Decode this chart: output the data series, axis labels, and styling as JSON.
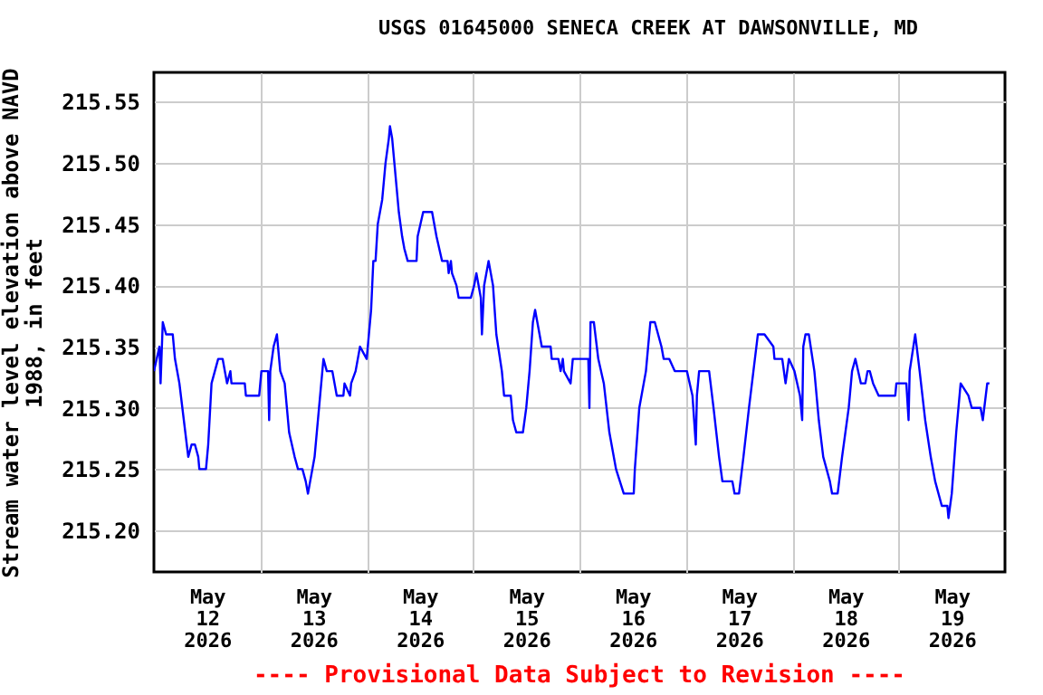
{
  "chart_data": {
    "type": "line",
    "title": "USGS 01645000 SENECA CREEK AT DAWSONVILLE, MD",
    "ylabel": "Stream water level elevation above NAVD 1988, in feet",
    "annotations": [
      "---- Provisional Data Subject to Revision ----"
    ],
    "grid": true,
    "line_style": "solid",
    "xlim": [
      "2026-05-12T00:00",
      "2026-05-20T00:00"
    ],
    "xticks": [
      {
        "value": "2026-05-12T12:00",
        "label": "May\n12\n2026"
      },
      {
        "value": "2026-05-13T00:00",
        "label": null
      },
      {
        "value": "2026-05-13T12:00",
        "label": "May\n13\n2026"
      },
      {
        "value": "2026-05-14T00:00",
        "label": null
      },
      {
        "value": "2026-05-14T12:00",
        "label": "May\n14\n2026"
      },
      {
        "value": "2026-05-15T00:00",
        "label": null
      },
      {
        "value": "2026-05-15T12:00",
        "label": "May\n15\n2026"
      },
      {
        "value": "2026-05-16T00:00",
        "label": null
      },
      {
        "value": "2026-05-16T12:00",
        "label": "May\n16\n2026"
      },
      {
        "value": "2026-05-17T00:00",
        "label": null
      },
      {
        "value": "2026-05-17T12:00",
        "label": "May\n17\n2026"
      },
      {
        "value": "2026-05-18T00:00",
        "label": null
      },
      {
        "value": "2026-05-18T12:00",
        "label": "May\n18\n2026"
      },
      {
        "value": "2026-05-19T00:00",
        "label": null
      },
      {
        "value": "2026-05-19T12:00",
        "label": "May\n19\n2026"
      }
    ],
    "ylim": [
      215.166,
      215.574
    ],
    "yticks": [
      {
        "value": 215.2,
        "label": "215.20"
      },
      {
        "value": 215.25,
        "label": "215.25"
      },
      {
        "value": 215.3,
        "label": "215.30"
      },
      {
        "value": 215.35,
        "label": "215.35"
      },
      {
        "value": 215.4,
        "label": "215.40"
      },
      {
        "value": 215.45,
        "label": "215.45"
      },
      {
        "value": 215.5,
        "label": "215.50"
      },
      {
        "value": 215.55,
        "label": "215.55"
      }
    ],
    "series": [
      {
        "color": "#0000ff",
        "x": [
          "2026-05-12T00:00",
          "2026-05-12T01:15",
          "2026-05-12T01:30",
          "2026-05-12T02:00",
          "2026-05-12T02:45",
          "2026-05-12T04:15",
          "2026-05-12T04:45",
          "2026-05-12T05:45",
          "2026-05-12T06:45",
          "2026-05-12T07:45",
          "2026-05-12T08:30",
          "2026-05-12T09:15",
          "2026-05-12T10:00",
          "2026-05-12T10:15",
          "2026-05-12T11:45",
          "2026-05-12T12:15",
          "2026-05-12T13:00",
          "2026-05-12T14:30",
          "2026-05-12T15:30",
          "2026-05-12T16:30",
          "2026-05-12T17:15",
          "2026-05-12T17:30",
          "2026-05-12T20:30",
          "2026-05-12T20:45",
          "2026-05-12T23:45",
          "2026-05-13T00:15",
          "2026-05-13T01:45",
          "2026-05-13T02:00",
          "2026-05-13T02:15",
          "2026-05-13T03:00",
          "2026-05-13T03:45",
          "2026-05-13T04:30",
          "2026-05-13T05:30",
          "2026-05-13T06:00",
          "2026-05-13T06:30",
          "2026-05-13T07:45",
          "2026-05-13T08:30",
          "2026-05-13T09:30",
          "2026-05-13T10:15",
          "2026-05-13T10:45",
          "2026-05-13T11:15",
          "2026-05-13T12:15",
          "2026-05-13T13:15",
          "2026-05-13T14:00",
          "2026-05-13T14:15",
          "2026-05-13T15:00",
          "2026-05-13T16:15",
          "2026-05-13T17:15",
          "2026-05-13T18:45",
          "2026-05-13T19:00",
          "2026-05-13T20:15",
          "2026-05-13T20:30",
          "2026-05-13T21:30",
          "2026-05-13T22:30",
          "2026-05-14T00:00",
          "2026-05-14T00:15",
          "2026-05-14T01:00",
          "2026-05-14T01:30",
          "2026-05-14T02:00",
          "2026-05-14T02:30",
          "2026-05-14T03:30",
          "2026-05-14T04:15",
          "2026-05-14T05:00",
          "2026-05-14T05:15",
          "2026-05-14T05:45",
          "2026-05-14T06:15",
          "2026-05-14T06:45",
          "2026-05-14T07:15",
          "2026-05-14T08:00",
          "2026-05-14T08:30",
          "2026-05-14T09:15",
          "2026-05-14T11:15",
          "2026-05-14T11:30",
          "2026-05-14T12:45",
          "2026-05-14T14:45",
          "2026-05-14T15:45",
          "2026-05-14T17:00",
          "2026-05-14T18:15",
          "2026-05-14T18:30",
          "2026-05-14T19:00",
          "2026-05-14T19:15",
          "2026-05-14T20:15",
          "2026-05-14T20:45",
          "2026-05-14T23:30",
          "2026-05-15T00:15",
          "2026-05-15T00:45",
          "2026-05-15T01:45",
          "2026-05-15T02:00",
          "2026-05-15T02:30",
          "2026-05-15T03:30",
          "2026-05-15T04:00",
          "2026-05-15T04:30",
          "2026-05-15T05:15",
          "2026-05-15T06:30",
          "2026-05-15T07:00",
          "2026-05-15T08:30",
          "2026-05-15T09:00",
          "2026-05-15T09:45",
          "2026-05-15T11:15",
          "2026-05-15T12:00",
          "2026-05-15T12:45",
          "2026-05-15T13:30",
          "2026-05-15T14:00",
          "2026-05-15T14:30",
          "2026-05-15T15:30",
          "2026-05-15T17:30",
          "2026-05-15T17:45",
          "2026-05-15T19:15",
          "2026-05-15T19:45",
          "2026-05-15T20:15",
          "2026-05-15T20:30",
          "2026-05-15T22:00",
          "2026-05-15T22:30",
          "2026-05-16T01:15",
          "2026-05-16T02:00",
          "2026-05-16T02:15",
          "2026-05-16T02:30",
          "2026-05-16T03:15",
          "2026-05-16T04:15",
          "2026-05-16T05:30",
          "2026-05-16T06:45",
          "2026-05-16T08:15",
          "2026-05-16T10:00",
          "2026-05-16T12:15",
          "2026-05-16T12:30",
          "2026-05-16T13:30",
          "2026-05-16T15:00",
          "2026-05-16T16:00",
          "2026-05-16T17:00",
          "2026-05-16T18:30",
          "2026-05-16T19:00",
          "2026-05-16T20:15",
          "2026-05-16T21:30",
          "2026-05-17T00:15",
          "2026-05-17T01:30",
          "2026-05-17T02:15",
          "2026-05-17T02:30",
          "2026-05-17T03:00",
          "2026-05-17T05:15",
          "2026-05-17T06:15",
          "2026-05-17T07:30",
          "2026-05-17T08:15",
          "2026-05-17T10:30",
          "2026-05-17T11:00",
          "2026-05-17T12:00",
          "2026-05-17T13:00",
          "2026-05-17T14:15",
          "2026-05-17T15:15",
          "2026-05-17T16:15",
          "2026-05-17T17:45",
          "2026-05-17T19:45",
          "2026-05-17T20:00",
          "2026-05-17T21:45",
          "2026-05-17T22:30",
          "2026-05-17T23:15",
          "2026-05-18T00:30",
          "2026-05-18T01:45",
          "2026-05-18T02:15",
          "2026-05-18T02:30",
          "2026-05-18T03:00",
          "2026-05-18T03:45",
          "2026-05-18T05:00",
          "2026-05-18T06:00",
          "2026-05-18T07:00",
          "2026-05-18T08:30",
          "2026-05-18T09:00",
          "2026-05-18T10:15",
          "2026-05-18T11:15",
          "2026-05-18T12:45",
          "2026-05-18T13:30",
          "2026-05-18T14:15",
          "2026-05-18T15:30",
          "2026-05-18T16:30",
          "2026-05-18T17:00",
          "2026-05-18T17:30",
          "2026-05-18T18:15",
          "2026-05-18T19:30",
          "2026-05-18T23:15",
          "2026-05-18T23:30",
          "2026-05-19T01:45",
          "2026-05-19T02:15",
          "2026-05-19T02:30",
          "2026-05-19T03:45",
          "2026-05-19T04:45",
          "2026-05-19T06:00",
          "2026-05-19T07:15",
          "2026-05-19T08:15",
          "2026-05-19T09:45",
          "2026-05-19T11:00",
          "2026-05-19T11:15",
          "2026-05-19T12:00",
          "2026-05-19T13:00",
          "2026-05-19T14:00",
          "2026-05-19T15:45",
          "2026-05-19T16:30",
          "2026-05-19T18:30",
          "2026-05-19T19:00",
          "2026-05-19T20:00",
          "2026-05-19T20:30"
        ],
        "values": [
          215.33,
          215.35,
          215.32,
          215.37,
          215.36,
          215.36,
          215.34,
          215.32,
          215.29,
          215.26,
          215.27,
          215.27,
          215.26,
          215.25,
          215.25,
          215.27,
          215.32,
          215.34,
          215.34,
          215.32,
          215.33,
          215.32,
          215.32,
          215.31,
          215.31,
          215.33,
          215.33,
          215.29,
          215.33,
          215.35,
          215.36,
          215.33,
          215.32,
          215.3,
          215.28,
          215.26,
          215.25,
          215.25,
          215.24,
          215.23,
          215.24,
          215.26,
          215.3,
          215.33,
          215.34,
          215.33,
          215.33,
          215.31,
          215.31,
          215.32,
          215.31,
          215.32,
          215.33,
          215.35,
          215.34,
          215.35,
          215.38,
          215.42,
          215.42,
          215.45,
          215.47,
          215.5,
          215.52,
          215.53,
          215.52,
          215.5,
          215.48,
          215.46,
          215.44,
          215.43,
          215.42,
          215.42,
          215.44,
          215.46,
          215.46,
          215.44,
          215.42,
          215.42,
          215.41,
          215.42,
          215.41,
          215.4,
          215.39,
          215.39,
          215.4,
          215.41,
          215.39,
          215.36,
          215.4,
          215.42,
          215.41,
          215.4,
          215.36,
          215.33,
          215.31,
          215.31,
          215.29,
          215.28,
          215.28,
          215.3,
          215.33,
          215.37,
          215.38,
          215.37,
          215.35,
          215.35,
          215.34,
          215.34,
          215.33,
          215.34,
          215.33,
          215.32,
          215.34,
          215.34,
          215.34,
          215.3,
          215.37,
          215.37,
          215.34,
          215.32,
          215.28,
          215.25,
          215.23,
          215.23,
          215.25,
          215.3,
          215.33,
          215.37,
          215.37,
          215.35,
          215.34,
          215.34,
          215.33,
          215.33,
          215.31,
          215.27,
          215.31,
          215.33,
          215.33,
          215.3,
          215.26,
          215.24,
          215.24,
          215.23,
          215.23,
          215.26,
          215.3,
          215.33,
          215.36,
          215.36,
          215.35,
          215.34,
          215.34,
          215.32,
          215.34,
          215.33,
          215.31,
          215.29,
          215.35,
          215.36,
          215.36,
          215.33,
          215.29,
          215.26,
          215.24,
          215.23,
          215.23,
          215.26,
          215.3,
          215.33,
          215.34,
          215.32,
          215.32,
          215.33,
          215.33,
          215.32,
          215.31,
          215.31,
          215.32,
          215.32,
          215.29,
          215.33,
          215.36,
          215.33,
          215.29,
          215.26,
          215.24,
          215.22,
          215.22,
          215.21,
          215.23,
          215.28,
          215.32,
          215.31,
          215.3,
          215.3,
          215.29,
          215.32,
          215.32
        ]
      }
    ]
  }
}
